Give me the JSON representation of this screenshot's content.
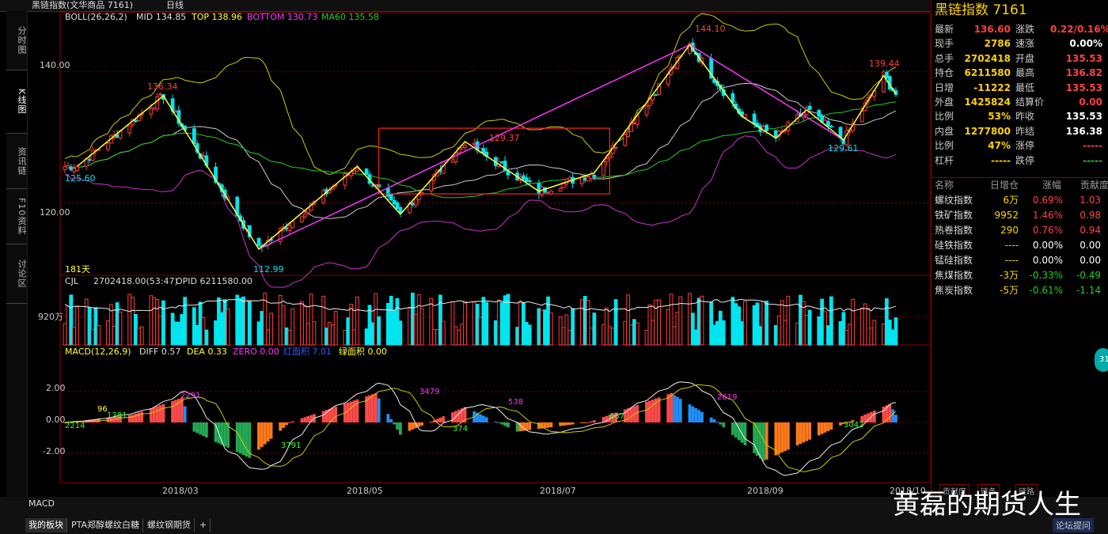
{
  "titlebar": {
    "title": "黑链指数(文华商品 7161)",
    "period": "日线"
  },
  "left_tabs": [
    {
      "label": "分时图",
      "active": false
    },
    {
      "label": "K线图",
      "active": true
    },
    {
      "label": "资讯链",
      "active": false
    },
    {
      "label": "F10资料",
      "active": false
    },
    {
      "label": "讨论区",
      "active": false
    }
  ],
  "indicators": {
    "boll": {
      "name": "BOLL(26,26,2)",
      "mid": "MID 134.85",
      "top": "TOP 138.96",
      "bottom": "BOTTOM 130.73",
      "ma60": "MA60 135.58"
    },
    "cjl": {
      "name": "CJL",
      "vol": "2702418.00(53:47)",
      "opid": "OPID 6211580.00"
    },
    "macd": {
      "name": "MACD(12,26,9)",
      "diff": "DIFF 0.57",
      "dea": "DEA 0.33",
      "zero": "ZERO 0.00",
      "red_area": "红面积 7.01",
      "green_area": "绿面积 0.00"
    }
  },
  "axis_labels": {
    "price": [
      "140.00",
      "120.00"
    ],
    "volume": [
      "920万"
    ],
    "macd": [
      "2.00",
      "0.00",
      "-2.00"
    ],
    "dates": [
      "2018/03",
      "2018/05",
      "2018/07",
      "2018/09",
      "2018/10"
    ]
  },
  "chart_data": {
    "type": "candlestick",
    "annotations": {
      "price": [
        "136.34",
        "125.60",
        "112.99",
        "129.37",
        "144.10",
        "139.44",
        "129.61"
      ],
      "macd": [
        "2214",
        "96",
        "1281",
        "2291",
        "3791",
        "3479",
        "374",
        "538",
        "687",
        "2619",
        "3042"
      ],
      "days": "181天"
    },
    "price_range": [
      109,
      149
    ],
    "pivots": [
      {
        "date": "2018-02-02",
        "price": 125.6
      },
      {
        "date": "2018-03-02",
        "price": 136.34
      },
      {
        "date": "2018-04-02",
        "price": 112.99
      },
      {
        "date": "2018-05-04",
        "price": 125.6
      },
      {
        "date": "2018-05-18",
        "price": 118.3
      },
      {
        "date": "2018-06-08",
        "price": 129.37
      },
      {
        "date": "2018-07-02",
        "price": 121.8
      },
      {
        "date": "2018-07-20",
        "price": 124.6
      },
      {
        "date": "2018-08-20",
        "price": 144.1
      },
      {
        "date": "2018-09-06",
        "price": 133.2
      },
      {
        "date": "2018-09-17",
        "price": 129.9
      },
      {
        "date": "2018-09-27",
        "price": 134.2
      },
      {
        "date": "2018-10-09",
        "price": 129.61
      },
      {
        "date": "2018-10-22",
        "price": 139.44
      },
      {
        "date": "2018-10-26",
        "price": 136.6
      }
    ],
    "magenta_trend": [
      {
        "date": "2018-04-02",
        "price": 112.99
      },
      {
        "date": "2018-08-20",
        "price": 144.1
      },
      {
        "date": "2018-10-09",
        "price": 129.61
      }
    ],
    "consolidation_box": {
      "date_start": "2018-05-11",
      "date_end": "2018-07-25",
      "price_low": 121.4,
      "price_high": 131.4
    },
    "macd_range": [
      -3.9,
      4.0
    ],
    "macd_pivots": [
      {
        "date": "2018-01-29",
        "value": 0.0
      },
      {
        "date": "2018-02-20",
        "value": 0.5
      },
      {
        "date": "2018-03-08",
        "value": 1.6
      },
      {
        "date": "2018-03-12",
        "value": -0.6
      },
      {
        "date": "2018-03-30",
        "value": -2.3
      },
      {
        "date": "2018-04-12",
        "value": 0.0
      },
      {
        "date": "2018-05-10",
        "value": 1.9
      },
      {
        "date": "2018-05-18",
        "value": -0.8
      },
      {
        "date": "2018-06-08",
        "value": 1.0
      },
      {
        "date": "2018-06-25",
        "value": -0.6
      },
      {
        "date": "2018-07-18",
        "value": 0.0
      },
      {
        "date": "2018-08-14",
        "value": 1.9
      },
      {
        "date": "2018-08-28",
        "value": 0.2
      },
      {
        "date": "2018-09-13",
        "value": -2.5
      },
      {
        "date": "2018-10-09",
        "value": -0.1
      },
      {
        "date": "2018-10-24",
        "value": 1.2
      },
      {
        "date": "2018-10-26",
        "value": 0.5
      }
    ]
  },
  "quote": {
    "title": "黑链指数  7161",
    "rows": [
      {
        "l1": "最新",
        "v1": "136.60",
        "c1": "#ff4040",
        "l2": "涨跌",
        "v2": "0.22/0.16%",
        "c2": "#ff4040"
      },
      {
        "l1": "现手",
        "v1": "2786",
        "c1": "#ffd200",
        "l2": "速涨",
        "v2": "0.00%",
        "c2": "#ffffff"
      },
      {
        "l1": "总手",
        "v1": "2702418",
        "c1": "#ffd200",
        "l2": "开盘",
        "v2": "135.53",
        "c2": "#ff4040"
      },
      {
        "l1": "持仓",
        "v1": "6211580",
        "c1": "#ffd200",
        "l2": "最高",
        "v2": "136.82",
        "c2": "#ff4040"
      },
      {
        "l1": "日增",
        "v1": "-11222",
        "c1": "#ffd200",
        "l2": "最低",
        "v2": "135.53",
        "c2": "#ff4040"
      },
      {
        "l1": "外盘",
        "v1": "1425824",
        "c1": "#ffd200",
        "l2": "结算价",
        "v2": "0.00",
        "c2": "#ff4040"
      },
      {
        "l1": "比例",
        "v1": "53%",
        "c1": "#ffd200",
        "l2": "昨收",
        "v2": "135.53",
        "c2": "#ffffff"
      },
      {
        "l1": "内盘",
        "v1": "1277800",
        "c1": "#ffd200",
        "l2": "昨结",
        "v2": "136.38",
        "c2": "#ffffff"
      },
      {
        "l1": "比例",
        "v1": "47%",
        "c1": "#ffd200",
        "l2": "涨停",
        "v2": "-----",
        "c2": "#ff4040"
      },
      {
        "l1": "杠杆",
        "v1": "-----",
        "c1": "#ffd200",
        "l2": "跌停",
        "v2": "-----",
        "c2": "#22cc22"
      }
    ]
  },
  "sector": {
    "headers": [
      "名称",
      "日增仓",
      "涨幅",
      "贡献度"
    ],
    "rows": [
      {
        "name": "螺纹指数",
        "inc": "6万",
        "chg": "0.69%",
        "contrib": "1.03",
        "color": "#ff4040"
      },
      {
        "name": "铁矿指数",
        "inc": "9952",
        "chg": "1.46%",
        "contrib": "0.98",
        "color": "#ff4040"
      },
      {
        "name": "热卷指数",
        "inc": "290",
        "chg": "0.76%",
        "contrib": "0.94",
        "color": "#ff4040"
      },
      {
        "name": "硅铁指数",
        "inc": "----",
        "chg": "0.00%",
        "contrib": "0.00",
        "color": "#ffffff"
      },
      {
        "name": "锰硅指数",
        "inc": "----",
        "chg": "0.00%",
        "contrib": "0.00",
        "color": "#ffffff"
      },
      {
        "name": "焦煤指数",
        "inc": "-3万",
        "chg": "-0.33%",
        "contrib": "-0.49",
        "color": "#22cc22"
      },
      {
        "name": "焦炭指数",
        "inc": "-5万",
        "chg": "-0.61%",
        "contrib": "-1.14",
        "color": "#22cc22"
      }
    ],
    "bottom_tabs": [
      "贡献度",
      "链条",
      "链路"
    ]
  },
  "bottom": {
    "panel_tab": "MACD",
    "tabs": [
      "我的板块",
      "PTA郑醇螺纹白糖",
      "螺纹钢期货",
      "+"
    ],
    "forum": "论坛提问",
    "badge": "31"
  },
  "watermark": "黄磊的期货人生",
  "colors": {
    "up": "#ff3b3b",
    "down": "#00e5ee",
    "zigzag": "#ffff33",
    "trend": "#ff33ff",
    "box": "#ff2020",
    "grid": "#8a0000",
    "ma60": "#22cc22",
    "boll_mid": "#cccccc",
    "boll_top": "#cccc00",
    "boll_bot": "#cc33cc"
  }
}
